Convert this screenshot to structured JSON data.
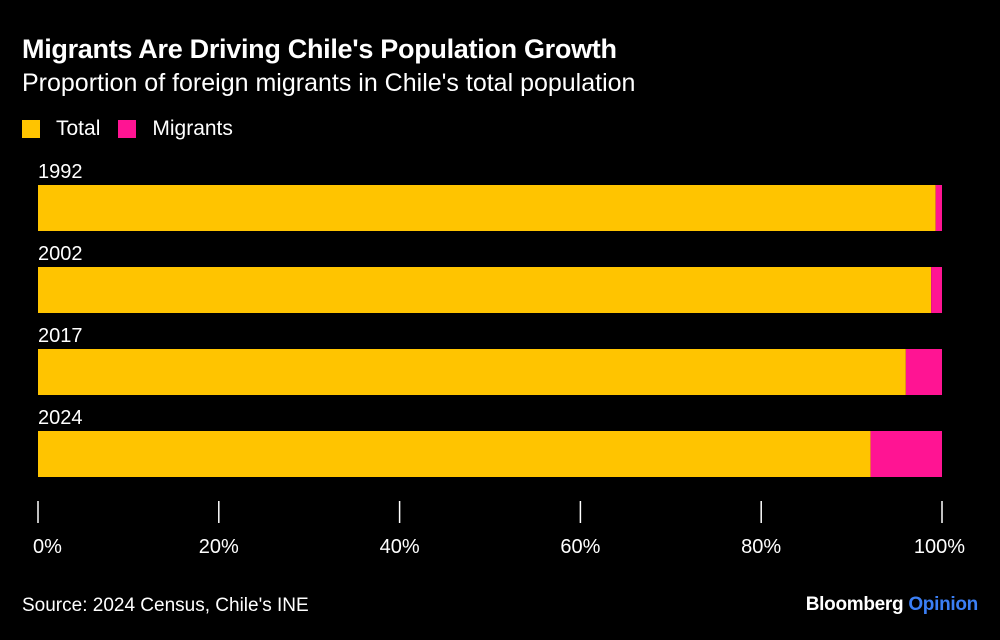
{
  "chart_data": {
    "type": "bar",
    "orientation": "horizontal",
    "stacked": true,
    "title": "Migrants Are Driving Chile's Population Growth",
    "subtitle": "Proportion of foreign migrants in Chile's total population",
    "categories": [
      "1992",
      "2002",
      "2017",
      "2024"
    ],
    "series": [
      {
        "name": "Total",
        "color": "#ffc400",
        "values": [
          99.3,
          98.8,
          96.0,
          92.1
        ]
      },
      {
        "name": "Migrants",
        "color": "#ff1493",
        "values": [
          0.7,
          1.2,
          4.0,
          7.9
        ]
      }
    ],
    "x_ticks": [
      "0%",
      "20%",
      "40%",
      "60%",
      "80%",
      "100%"
    ],
    "xlim": [
      0,
      100
    ],
    "legend_position": "top-left",
    "grid": false
  },
  "source": "Source: 2024 Census, Chile's INE",
  "brand": {
    "name": "Bloomberg",
    "section": "Opinion"
  }
}
